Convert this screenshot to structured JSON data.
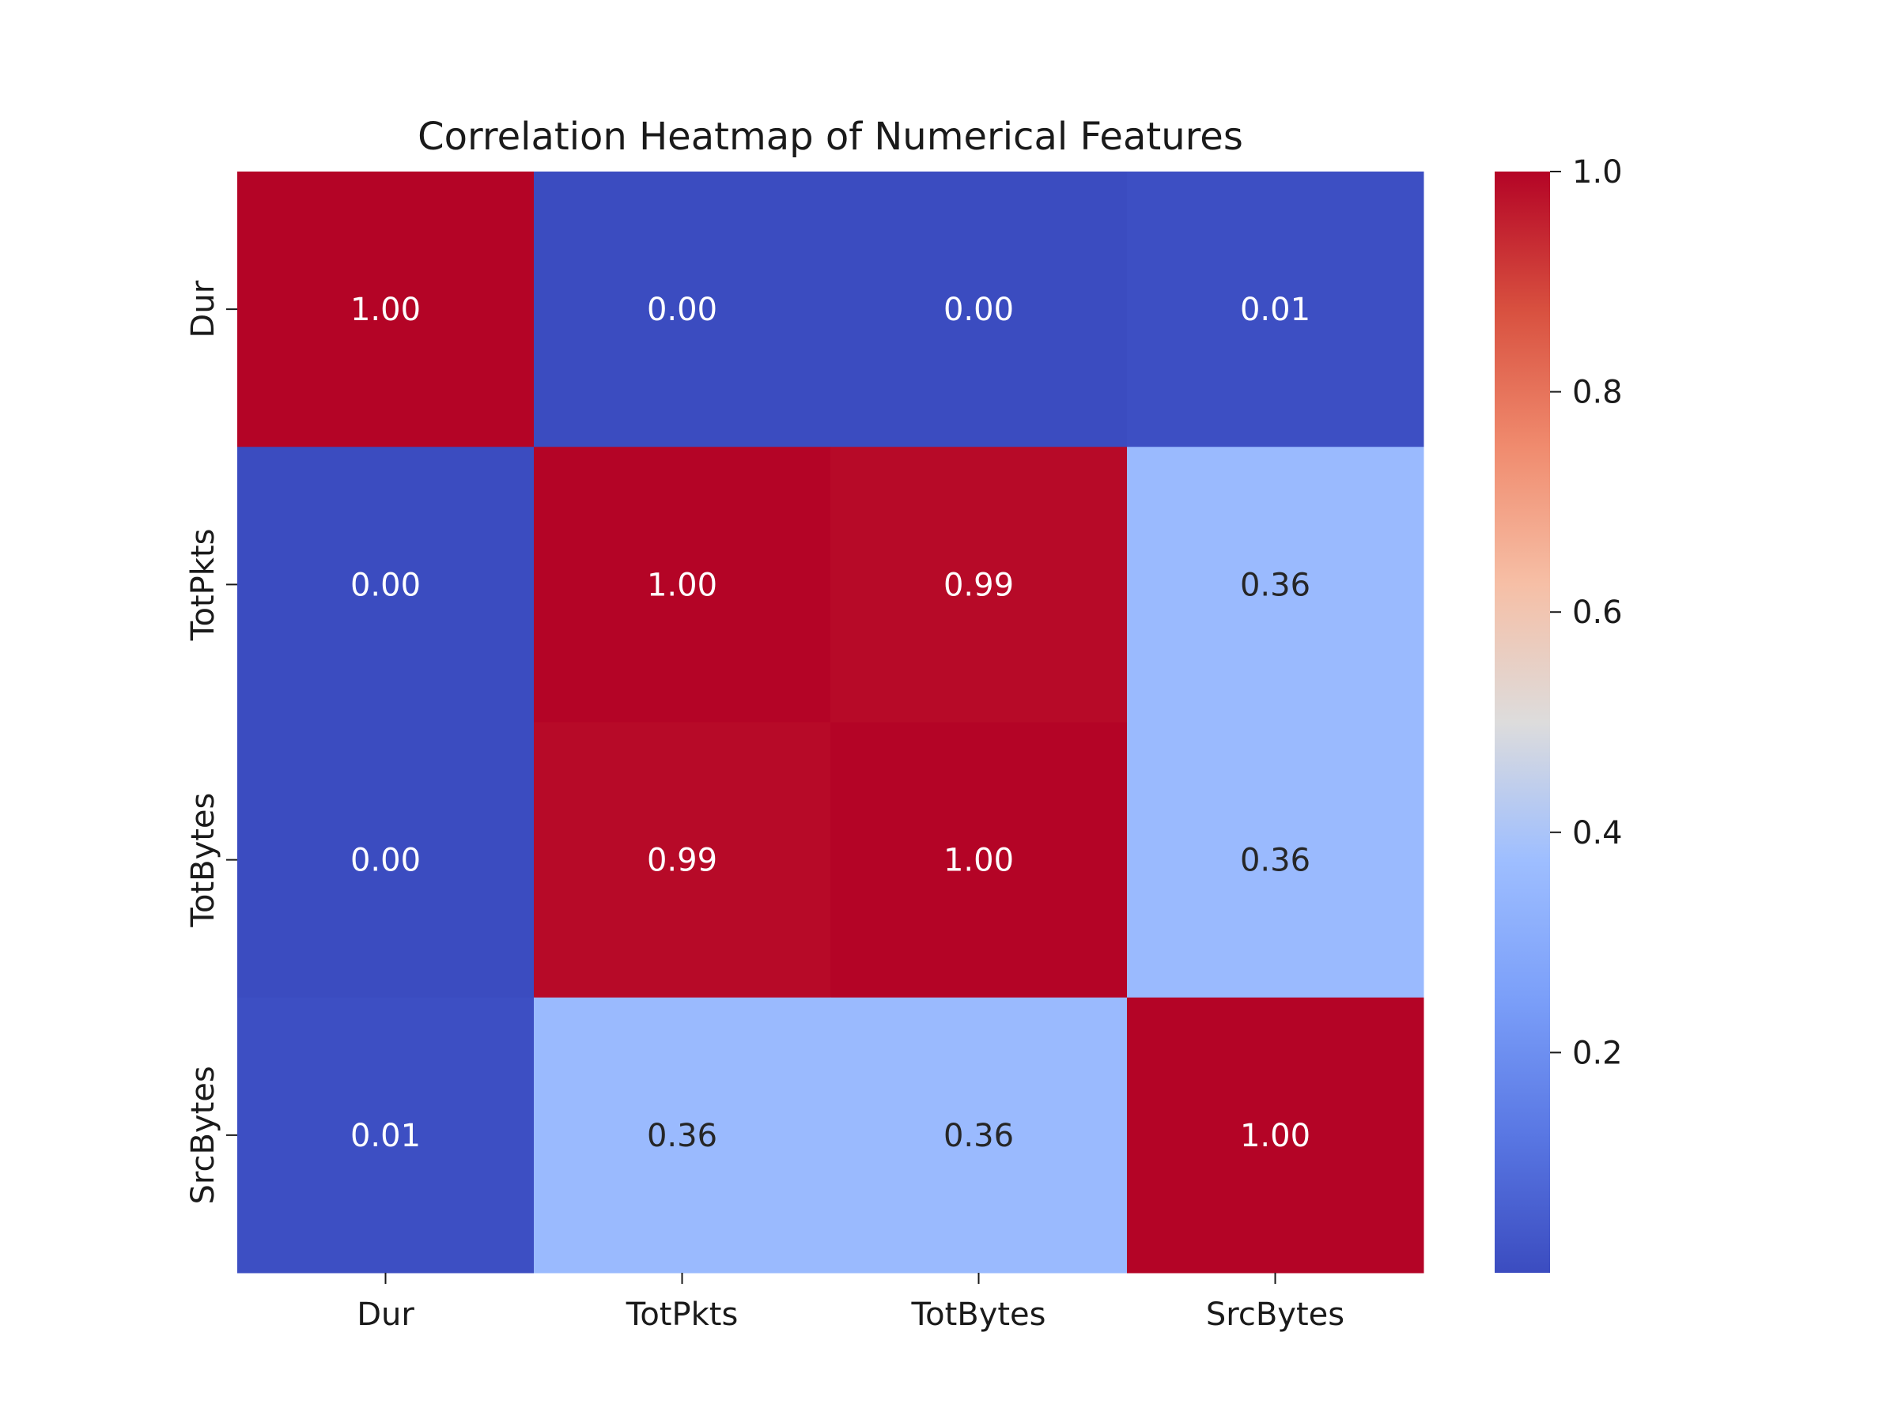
{
  "chart_data": {
    "type": "heatmap",
    "title": "Correlation Heatmap of Numerical Features",
    "xlabel": "",
    "ylabel": "",
    "x_categories": [
      "Dur",
      "TotPkts",
      "TotBytes",
      "SrcBytes"
    ],
    "y_categories": [
      "Dur",
      "TotPkts",
      "TotBytes",
      "SrcBytes"
    ],
    "values": [
      [
        1.0,
        0.0,
        0.0,
        0.01
      ],
      [
        0.0,
        1.0,
        0.99,
        0.36
      ],
      [
        0.0,
        0.99,
        1.0,
        0.36
      ],
      [
        0.01,
        0.36,
        0.36,
        1.0
      ]
    ],
    "annotations": [
      [
        "1.00",
        "0.00",
        "0.00",
        "0.01"
      ],
      [
        "0.00",
        "1.00",
        "0.99",
        "0.36"
      ],
      [
        "0.00",
        "0.99",
        "1.00",
        "0.36"
      ],
      [
        "0.01",
        "0.36",
        "0.36",
        "1.00"
      ]
    ],
    "colormap": "coolwarm",
    "colorbar": {
      "range": [
        0.0,
        1.0
      ],
      "ticks": [
        0.2,
        0.4,
        0.6,
        0.8,
        1.0
      ],
      "tick_labels": [
        "0.2",
        "0.4",
        "0.6",
        "0.8",
        "1.0"
      ]
    },
    "grid": false,
    "legend": "colorbar-right"
  }
}
